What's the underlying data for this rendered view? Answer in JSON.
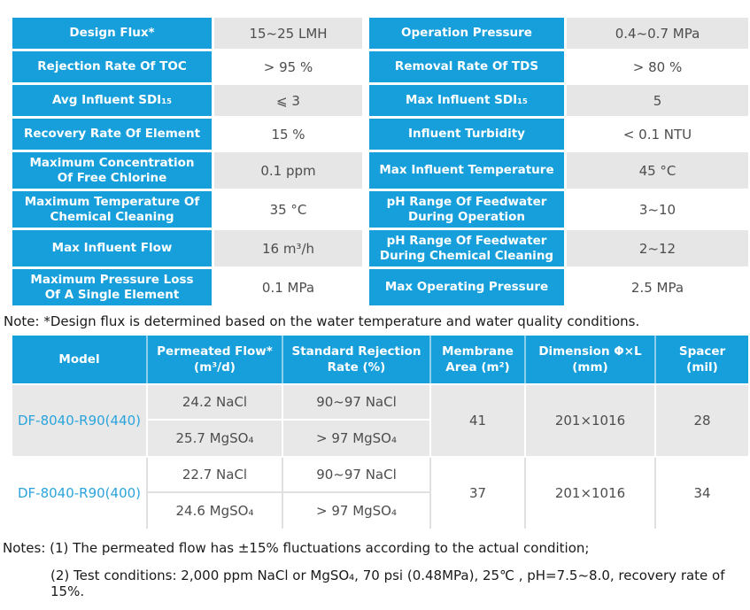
{
  "colors": {
    "header_blue": "#169fdb",
    "shaded_cell_gray": "#e6e6e6",
    "model_group_gray": "#e8e8e8",
    "value_text_gray": "#4d4d4d",
    "model_link_blue": "#2ba4dc"
  },
  "spec_table": {
    "rows": [
      {
        "left_label": "Design Flux*",
        "left_value": "15~25 LMH",
        "right_label": "Operation Pressure",
        "right_value": "0.4~0.7 MPa"
      },
      {
        "left_label": "Rejection Rate Of TOC",
        "left_value": "> 95 %",
        "right_label": "Removal Rate Of TDS",
        "right_value": "> 80 %"
      },
      {
        "left_label": "Avg Influent SDI₁₅",
        "left_value": "⩽ 3",
        "right_label": "Max Influent SDI₁₅",
        "right_value": "5"
      },
      {
        "left_label": "Recovery Rate Of Element",
        "left_value": "15 %",
        "right_label": "Influent Turbidity",
        "right_value": "< 0.1 NTU"
      },
      {
        "left_label": "Maximum Concentration Of Free Chlorine",
        "left_value": "0.1 ppm",
        "right_label": "Max Influent Temperature",
        "right_value": "45 °C"
      },
      {
        "left_label": "Maximum Temperature Of Chemical Cleaning",
        "left_value": "35 °C",
        "right_label": "pH Range Of Feedwater During Operation",
        "right_value": "3~10"
      },
      {
        "left_label": "Max Influent Flow",
        "left_value": "16 m³/h",
        "right_label": "pH Range Of Feedwater During Chemical Cleaning",
        "right_value": "2~12"
      },
      {
        "left_label": "Maximum Pressure Loss Of A Single Element",
        "left_value": "0.1 MPa",
        "right_label": "Max Operating Pressure",
        "right_value": "2.5 MPa"
      }
    ]
  },
  "note_design_flux": "Note: *Design flux is determined based on the water temperature and water quality conditions.",
  "model_table": {
    "columns": [
      {
        "line1": "Model",
        "line2": ""
      },
      {
        "line1": "Permeated Flow*",
        "line2": "(m³/d)"
      },
      {
        "line1": "Standard Rejection",
        "line2": "Rate (%)"
      },
      {
        "line1": "Membrane",
        "line2": "Area (m²)"
      },
      {
        "line1": "Dimension Φ×L",
        "line2": "(mm)"
      },
      {
        "line1": "Spacer",
        "line2": "(mil)"
      }
    ],
    "groups": [
      {
        "model": "DF-8040-R90(440)",
        "flow_nacl": "24.2 NaCl",
        "flow_mgso4": "25.7 MgSO₄",
        "rej_nacl": "90~97 NaCl",
        "rej_mgso4": "> 97 MgSO₄",
        "area": "41",
        "dimension": "201×1016",
        "spacer": "28"
      },
      {
        "model": "DF-8040-R90(400)",
        "flow_nacl": "22.7 NaCl",
        "flow_mgso4": "24.6 MgSO₄",
        "rej_nacl": "90~97 NaCl",
        "rej_mgso4": "> 97 MgSO₄",
        "area": "37",
        "dimension": "201×1016",
        "spacer": "34"
      }
    ]
  },
  "footnotes": {
    "line1": "Notes: (1) The permeated flow has ±15% fluctuations according to the actual condition;",
    "line2": "(2) Test conditions: 2,000 ppm NaCl or MgSO₄, 70 psi (0.48MPa), 25℃ , pH=7.5~8.0, recovery rate of 15%."
  }
}
